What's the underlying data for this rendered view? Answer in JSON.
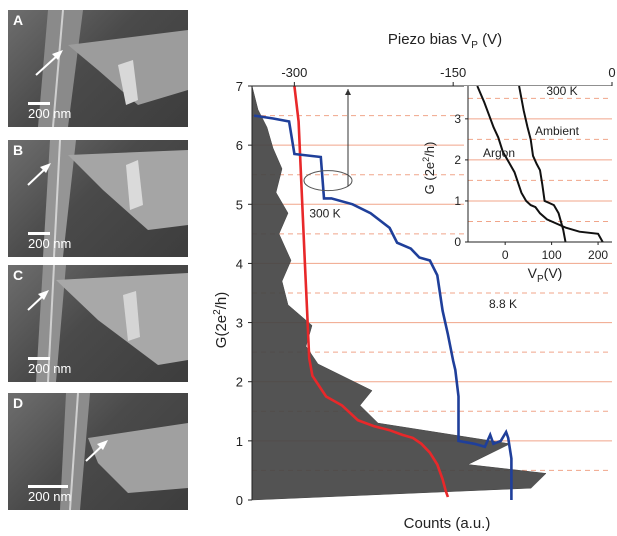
{
  "panels": [
    {
      "letter": "A",
      "scale": "200 nm"
    },
    {
      "letter": "B",
      "scale": "200 nm"
    },
    {
      "letter": "C",
      "scale": "200 nm"
    },
    {
      "letter": "D",
      "scale": "200 nm"
    }
  ],
  "chart_data": [
    {
      "type": "line",
      "title": "",
      "top_axis_label": "Piezo bias V",
      "top_axis_sub": "P",
      "top_axis_unit": " (V)",
      "top_ticks": [
        {
          "value": -300,
          "label": "-300"
        },
        {
          "value": -150,
          "label": "-150"
        },
        {
          "value": 0,
          "label": "0"
        }
      ],
      "ylabel": "G(2e",
      "ylabel_sup": "2",
      "ylabel_tail": "/h)",
      "xlabel": "Counts (a.u.)",
      "ylim": [
        0,
        7
      ],
      "y_ticks": [
        0,
        1,
        2,
        3,
        4,
        5,
        6,
        7
      ],
      "grid": "horizontal dashed at half-integer G, solid at integer G",
      "annotations": [
        "300 K",
        "8.8 K"
      ],
      "colors": {
        "histogram": "#444444",
        "red_trace": "#e8282a",
        "blue_trace": "#1f3f9a",
        "grid": "#f0a58a"
      },
      "series": [
        {
          "name": "300 K",
          "x": [
            -300,
            -296,
            -294,
            -292,
            -290,
            -288,
            -286,
            -283,
            -270,
            -255,
            -240,
            -225,
            -210,
            -198,
            -188,
            -180,
            -172,
            -165,
            -160,
            -157,
            -155
          ],
          "y": [
            7.0,
            6.4,
            5.6,
            4.8,
            4.0,
            3.2,
            2.4,
            2.1,
            1.75,
            1.6,
            1.35,
            1.25,
            1.18,
            1.1,
            1.05,
            0.95,
            0.8,
            0.6,
            0.35,
            0.15,
            0.05
          ]
        },
        {
          "name": "8.8 K",
          "x": [
            -338,
            -320,
            -305,
            -300,
            -275,
            -272,
            -265,
            -245,
            -228,
            -210,
            -203,
            -190,
            -182,
            -172,
            -165,
            -160,
            -155,
            -150,
            -148,
            -145,
            -145,
            -130,
            -120,
            -115,
            -112,
            -105,
            -100,
            -98,
            -95,
            -95
          ],
          "y": [
            6.5,
            6.45,
            6.4,
            5.85,
            5.8,
            5.1,
            5.1,
            5.0,
            4.85,
            4.6,
            4.35,
            4.25,
            4.1,
            4.05,
            3.8,
            3.2,
            2.8,
            2.35,
            2.2,
            1.75,
            1.0,
            0.95,
            0.9,
            1.1,
            0.95,
            1.0,
            1.15,
            1.05,
            0.7,
            0.0
          ]
        }
      ],
      "histogram": {
        "name": "Counts",
        "g": [
          0.2,
          0.45,
          0.6,
          0.95,
          1.3,
          1.6,
          1.85,
          2.3,
          2.6,
          2.95,
          3.3,
          3.7,
          4.05,
          4.5,
          4.85,
          5.2,
          5.6,
          5.95,
          6.3,
          6.6
        ],
        "counts": [
          0.93,
          0.98,
          0.72,
          0.86,
          0.42,
          0.36,
          0.4,
          0.22,
          0.18,
          0.2,
          0.12,
          0.1,
          0.13,
          0.09,
          0.12,
          0.08,
          0.1,
          0.07,
          0.05,
          0.02
        ]
      }
    },
    {
      "type": "line",
      "title": "",
      "xlabel": "V",
      "xlabel_sub": "P",
      "xlabel_unit": "(V)",
      "ylabel": "G (2e",
      "ylabel_sup": "2",
      "ylabel_tail": "/h)",
      "xlim": [
        -80,
        230
      ],
      "ylim": [
        0,
        3.8
      ],
      "x_ticks": [
        0,
        100,
        200
      ],
      "y_ticks": [
        0,
        1,
        2,
        3
      ],
      "annotations": [
        "300 K",
        "Ambient",
        "Argon"
      ],
      "series": [
        {
          "name": "Argon",
          "x": [
            -60,
            -45,
            -35,
            -25,
            -15,
            -5,
            5,
            20,
            35,
            45,
            55,
            65,
            75,
            90,
            110,
            130,
            160,
            200,
            210
          ],
          "y": [
            3.8,
            3.4,
            3.1,
            2.8,
            2.55,
            2.2,
            2.0,
            1.7,
            1.2,
            1.0,
            0.9,
            0.85,
            0.7,
            0.55,
            0.45,
            0.35,
            0.25,
            0.2,
            0.0
          ]
        },
        {
          "name": "Ambient",
          "x": [
            30,
            40,
            48,
            55,
            60,
            68,
            75,
            80,
            85,
            95,
            105,
            115,
            125,
            130
          ],
          "y": [
            3.8,
            3.2,
            2.8,
            2.5,
            2.1,
            1.9,
            1.75,
            1.4,
            1.0,
            0.95,
            0.9,
            0.7,
            0.3,
            0.0
          ]
        }
      ]
    }
  ]
}
